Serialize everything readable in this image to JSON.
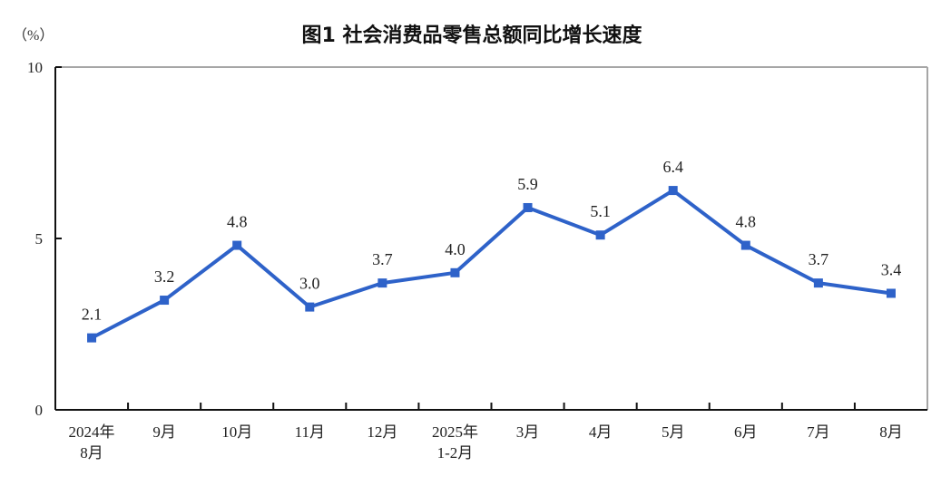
{
  "chart_data": {
    "type": "line",
    "title": "图1  社会消费品零售总额同比增长速度",
    "ylabel": "（%）",
    "categories": [
      [
        "2024年",
        "8月"
      ],
      [
        "9月"
      ],
      [
        "10月"
      ],
      [
        "11月"
      ],
      [
        "12月"
      ],
      [
        "2025年",
        "1-2月"
      ],
      [
        "3月"
      ],
      [
        "4月"
      ],
      [
        "5月"
      ],
      [
        "6月"
      ],
      [
        "7月"
      ],
      [
        "8月"
      ]
    ],
    "series": [
      {
        "values": [
          2.1,
          3.2,
          4.8,
          3.0,
          3.7,
          4.0,
          5.9,
          5.1,
          6.4,
          4.8,
          3.7,
          3.4
        ]
      }
    ],
    "data_labels": [
      "2.1",
      "3.2",
      "4.8",
      "3.0",
      "3.7",
      "4.0",
      "5.9",
      "5.1",
      "6.4",
      "4.8",
      "3.7",
      "3.4"
    ],
    "ylim": [
      0,
      10
    ],
    "yticks": [
      0,
      5,
      10
    ],
    "grid": false,
    "line_color": "#2e62c9"
  }
}
